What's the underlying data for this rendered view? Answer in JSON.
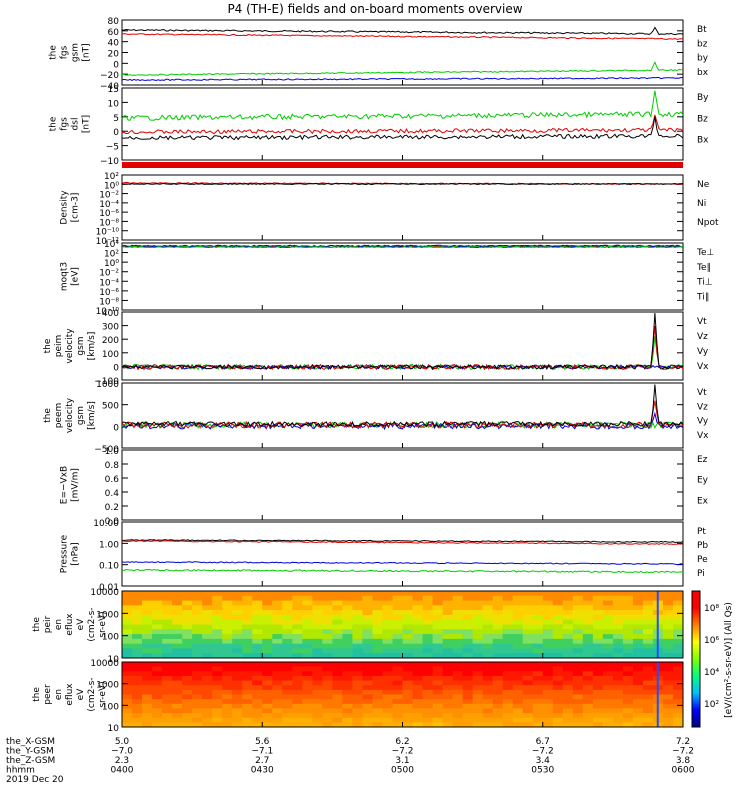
{
  "title": "P4 (TH-E) fields and on-board moments overview",
  "colors": {
    "black": "#000000",
    "red": "#e00000",
    "green": "#00cc00",
    "blue": "#0000dd"
  },
  "panels": [
    {
      "id": "fgs-gsm",
      "ylabel": [
        "the",
        "fgs",
        "gsm",
        "[nT]"
      ],
      "ticks": [
        "80",
        "60",
        "40",
        "20",
        "0",
        "−20",
        "−40"
      ],
      "legend": [
        {
          "label": "Bt",
          "color": "black"
        },
        {
          "label": "bz",
          "color": "red"
        },
        {
          "label": "by",
          "color": "green"
        },
        {
          "label": "bx",
          "color": "blue"
        }
      ]
    },
    {
      "id": "fgs-dsl",
      "ylabel": [
        "the",
        "fgs",
        "dsl",
        "[nT]"
      ],
      "ticks": [
        "15",
        "10",
        "5",
        "0",
        "−5",
        "−10"
      ],
      "legend": [
        {
          "label": "By",
          "color": "green"
        },
        {
          "label": "Bz",
          "color": "red"
        },
        {
          "label": "Bx",
          "color": "black"
        }
      ]
    },
    {
      "id": "density",
      "ylabel": [
        "Density",
        "[cm-3]"
      ],
      "ticks": [
        "10²",
        "10⁰",
        "10⁻²",
        "10⁻⁴",
        "10⁻⁶",
        "10⁻⁸",
        "10⁻¹⁰",
        "10⁻¹²"
      ],
      "legend": [
        {
          "label": "Ne",
          "color": "red"
        },
        {
          "label": "Ni",
          "color": "black"
        },
        {
          "label": "Npot",
          "color": "blue"
        }
      ]
    },
    {
      "id": "temperature",
      "ylabel": [
        "moqt3",
        "[eV]"
      ],
      "ticks": [
        "10⁴",
        "10²",
        "10⁰",
        "10⁻²",
        "10⁻⁴",
        "10⁻⁶",
        "10⁻⁸",
        "10⁻¹⁰"
      ],
      "legend": [
        {
          "label": "Te⊥",
          "color": "red"
        },
        {
          "label": "Te∥",
          "color": "black"
        },
        {
          "label": "Ti⊥",
          "color": "blue"
        },
        {
          "label": "Ti∥",
          "color": "green"
        }
      ]
    },
    {
      "id": "peim-velocity",
      "ylabel": [
        "the",
        "peim",
        "velocity",
        "gsm",
        "[km/s]"
      ],
      "ticks": [
        "400",
        "300",
        "200",
        "100",
        "0",
        "−100"
      ],
      "legend": [
        {
          "label": "Vt",
          "color": "black"
        },
        {
          "label": "Vz",
          "color": "red"
        },
        {
          "label": "Vy",
          "color": "green"
        },
        {
          "label": "Vx",
          "color": "blue"
        }
      ]
    },
    {
      "id": "peem-velocity",
      "ylabel": [
        "the",
        "peem",
        "velocity",
        "gsm",
        "[km/s]"
      ],
      "ticks": [
        "1000",
        "500",
        "0",
        "−500"
      ],
      "legend": [
        {
          "label": "Vt",
          "color": "black"
        },
        {
          "label": "Vz",
          "color": "red"
        },
        {
          "label": "Vy",
          "color": "green"
        },
        {
          "label": "Vx",
          "color": "blue"
        }
      ]
    },
    {
      "id": "efield",
      "ylabel": [
        "E=−VxB",
        "[mV/m]"
      ],
      "ticks": [
        "1.0",
        "0.8",
        "0.6",
        "0.4",
        "0.2",
        "0.0"
      ],
      "legend": [
        {
          "label": "Ez",
          "color": "red"
        },
        {
          "label": "Ey",
          "color": "green"
        },
        {
          "label": "Ex",
          "color": "blue"
        }
      ]
    },
    {
      "id": "pressure",
      "ylabel": [
        "Pressure",
        "[nPa]"
      ],
      "ticks": [
        "10.00",
        "1.00",
        "0.10",
        "0.01"
      ],
      "legend": [
        {
          "label": "Pt",
          "color": "black"
        },
        {
          "label": "Pb",
          "color": "red"
        },
        {
          "label": "Pe",
          "color": "green"
        },
        {
          "label": "Pi",
          "color": "blue"
        }
      ]
    },
    {
      "id": "peir-spec",
      "ylabel": [
        "the",
        "peir",
        "en",
        "eflux",
        "eV",
        "(cm2-s-",
        "sr-eV)"
      ],
      "ticks": [
        "10000",
        "1000",
        "100",
        "10"
      ],
      "legend": []
    },
    {
      "id": "peer-spec",
      "ylabel": [
        "the",
        "peer",
        "en",
        "eflux",
        "eV",
        "(cm2-s-",
        "sr-eV)"
      ],
      "ticks": [
        "10000",
        "1000",
        "100",
        "10"
      ],
      "legend": []
    }
  ],
  "colorbar": {
    "label": "[eV/(cm²-s-sr-eV)] (All Qs)",
    "ticks": [
      "10⁸",
      "10⁶",
      "10⁴",
      "10²"
    ]
  },
  "xaxis": {
    "rows": [
      {
        "label": "the_X-GSM",
        "values": [
          "5.0",
          "5.6",
          "6.2",
          "6.7",
          "7.2"
        ]
      },
      {
        "label": "the_Y-GSM",
        "values": [
          "−7.0",
          "−7.1",
          "−7.2",
          "−7.2",
          "−7.2"
        ]
      },
      {
        "label": "the_Z-GSM",
        "values": [
          "2.3",
          "2.7",
          "3.1",
          "3.4",
          "3.8"
        ]
      },
      {
        "label": "hhmm",
        "values": [
          "0400",
          "0430",
          "0500",
          "0530",
          "0600"
        ]
      }
    ],
    "date": "2019 Dec 20"
  },
  "chart_data": {
    "type": "line",
    "title": "P4 (TH-E) fields and on-board moments overview",
    "x": [
      "0400",
      "0430",
      "0500",
      "0530",
      "0600"
    ],
    "series": [
      {
        "name": "Bt",
        "values": [
          62,
          55,
          52,
          50,
          50
        ]
      },
      {
        "name": "bz",
        "values": [
          55,
          50,
          48,
          47,
          46
        ]
      },
      {
        "name": "by",
        "values": [
          -10,
          -10,
          -8,
          -7,
          -5
        ]
      },
      {
        "name": "bx",
        "values": [
          -17,
          -16,
          -15,
          -14,
          -13
        ]
      },
      {
        "name": "Pt",
        "values": [
          1.8,
          1.6,
          1.4,
          1.3,
          1.2
        ]
      },
      {
        "name": "Pb",
        "values": [
          1.6,
          1.5,
          1.3,
          1.2,
          1.1
        ]
      },
      {
        "name": "Pi",
        "values": [
          0.2,
          0.18,
          0.17,
          0.16,
          0.15
        ]
      },
      {
        "name": "Pe",
        "values": [
          0.09,
          0.085,
          0.08,
          0.07,
          0.07
        ]
      }
    ]
  }
}
